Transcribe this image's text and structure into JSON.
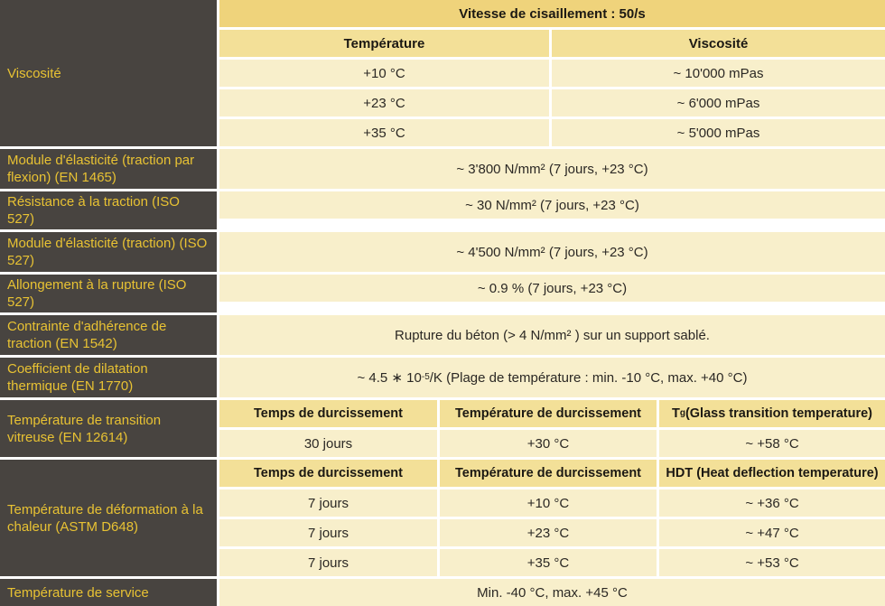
{
  "colors": {
    "label_bg": "#484440",
    "label_text": "#e8c233",
    "header1_bg": "#efd37b",
    "header2_bg": "#f3e098",
    "data_bg": "#f8efcb",
    "gap": "#ffffff",
    "value_text": "#2b2824"
  },
  "viscosity": {
    "label": "Viscosité",
    "header": "Vitesse de cisaillement : 50/s",
    "col_temp": "Température",
    "col_visc": "Viscosité",
    "rows": [
      {
        "temp": "+10 °C",
        "visc": "~ 10'000 mPas"
      },
      {
        "temp": "+23 °C",
        "visc": "~ 6'000 mPas"
      },
      {
        "temp": "+35 °C",
        "visc": "~ 5'000 mPas"
      }
    ]
  },
  "simple_rows": [
    {
      "label": "Module d'élasticité (traction par flexion) (EN 1465)",
      "value": "~ 3'800 N/mm² (7 jours, +23 °C)"
    },
    {
      "label": "Résistance à la traction (ISO 527)",
      "value": "~ 30 N/mm² (7 jours, +23 °C)"
    },
    {
      "label": "Module d'élasticité (traction) (ISO 527)",
      "value": "~ 4'500 N/mm² (7 jours, +23 °C)"
    },
    {
      "label": "Allongement à la rupture (ISO 527)",
      "value": "~ 0.9 % (7 jours, +23 °C)"
    },
    {
      "label": "Contrainte d'adhérence de traction (EN 1542)",
      "value": "Rupture du béton (> 4 N/mm² ) sur un support sablé."
    }
  ],
  "coefficient": {
    "label": "Coefficient de dilatation thermique (EN 1770)",
    "value_pre": "~ 4.5 ∗ 10",
    "value_sup": "-5",
    "value_post": " /K (Plage de température : min. -10 °C, max. +40 °C)"
  },
  "glass_transition": {
    "label": "Température de transition vitreuse (EN 12614)",
    "col_time": "Temps de durcissement",
    "col_cure_temp": "Température de durcissement",
    "col_tg_t": "T",
    "col_tg_g": "g",
    "col_tg_rest": " (Glass transition temperature)",
    "row": {
      "time": "30 jours",
      "cure_temp": "+30 °C",
      "tg": "~ +58 °C"
    }
  },
  "heat_deflection": {
    "label": "Température de déformation à la chaleur (ASTM D648)",
    "col_time": "Temps de durcissement",
    "col_cure_temp": "Température de durcissement",
    "col_hdt": "HDT (Heat deflection temperature)",
    "rows": [
      {
        "time": "7 jours",
        "cure_temp": "+10 °C",
        "hdt": "~ +36 °C"
      },
      {
        "time": "7 jours",
        "cure_temp": "+23 °C",
        "hdt": "~ +47 °C"
      },
      {
        "time": "7 jours",
        "cure_temp": "+35 °C",
        "hdt": "~ +53 °C"
      }
    ]
  },
  "service": {
    "label": "Température de service",
    "value": "Min. -40 °C, max. +45 °C"
  }
}
